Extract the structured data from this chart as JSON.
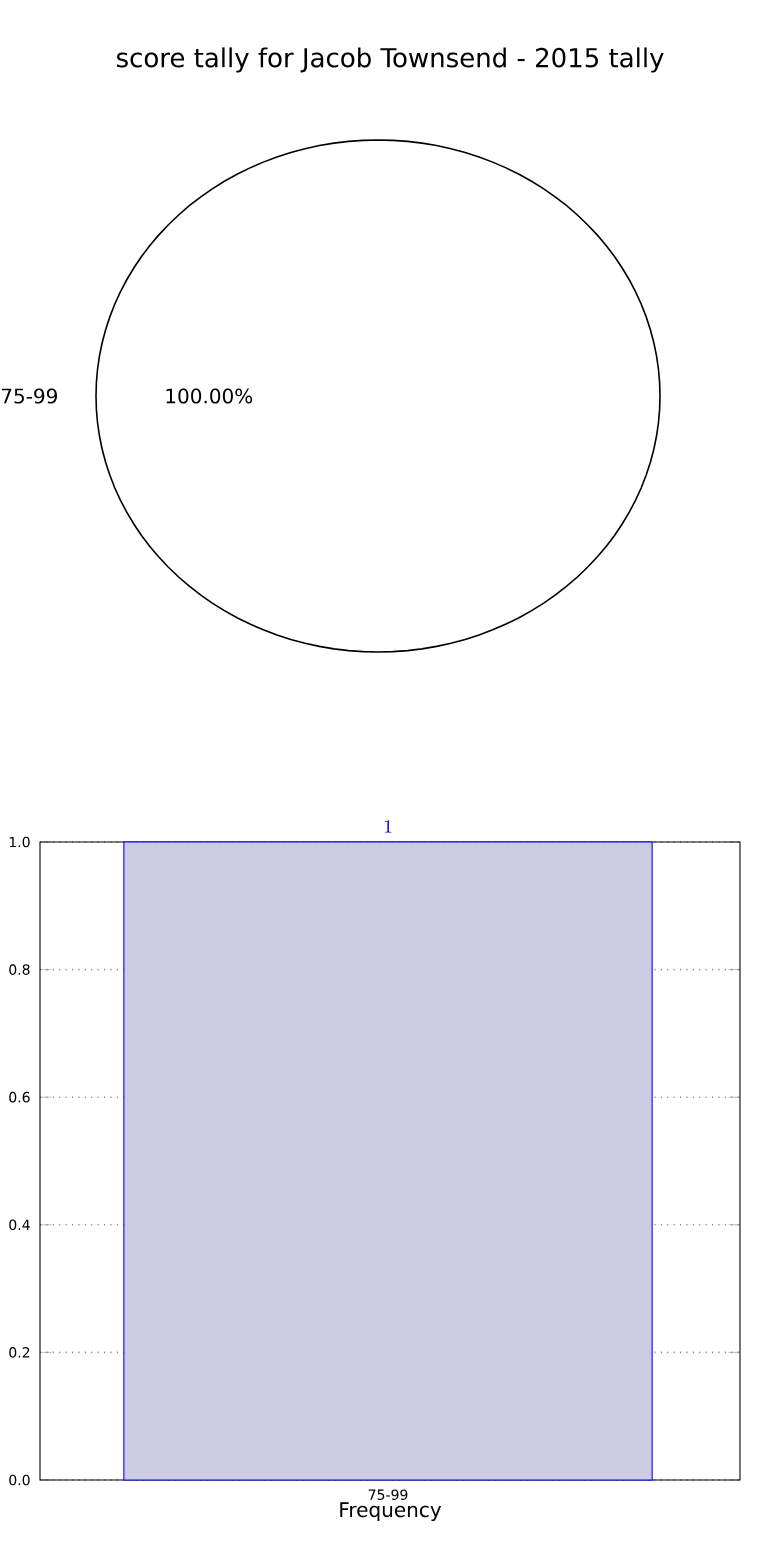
{
  "chart_data": [
    {
      "type": "pie",
      "title": "score tally for Jacob Townsend - 2015 tally",
      "categories": [
        "75-99"
      ],
      "values": [
        100
      ],
      "colors": [
        "#ffffff"
      ],
      "value_labels": [
        "100.00%"
      ]
    },
    {
      "type": "bar",
      "xlabel": "Frequency",
      "categories": [
        "75-99"
      ],
      "values": [
        1
      ],
      "color": "#cbcbe3",
      "data_labels": true,
      "grid": true,
      "ylim": [
        0,
        1
      ],
      "yticks": [
        {
          "value": 0,
          "label": "0.0"
        },
        {
          "value": 0.2,
          "label": "0.2"
        },
        {
          "value": 0.4,
          "label": "0.4"
        },
        {
          "value": 0.6,
          "label": "0.6"
        },
        {
          "value": 0.8,
          "label": "0.8"
        },
        {
          "value": 1,
          "label": "1.0"
        }
      ]
    }
  ]
}
